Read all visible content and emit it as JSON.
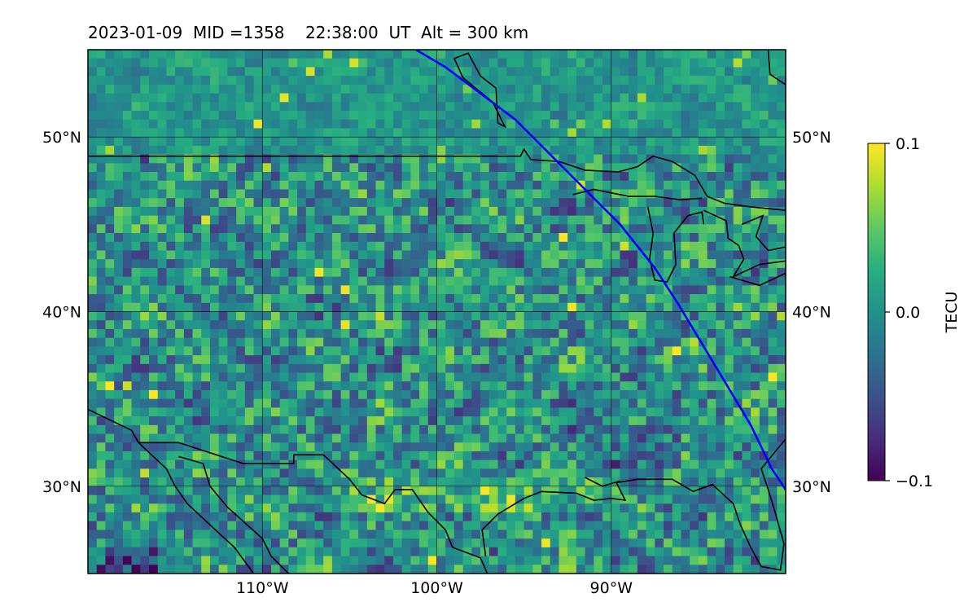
{
  "title": "2023-01-09  MID =1358    22:38:00  UT  Alt = 300 km",
  "chart_data": {
    "type": "heatmap",
    "title": "2023-01-09  MID =1358    22:38:00  UT  Alt = 300 km",
    "xlabel": "",
    "ylabel": "",
    "lon_range": [
      -120,
      -80
    ],
    "lat_range": [
      25,
      55
    ],
    "x_ticks": [
      {
        "value": -110,
        "label": "110°W"
      },
      {
        "value": -100,
        "label": "100°W"
      },
      {
        "value": -90,
        "label": "90°W"
      }
    ],
    "y_ticks": [
      {
        "value": 50,
        "label": "50°N"
      },
      {
        "value": 40,
        "label": "40°N"
      },
      {
        "value": 30,
        "label": "30°N"
      }
    ],
    "grid": true,
    "colormap": "viridis",
    "colorbar": {
      "label": "TECU",
      "range": [
        -0.1,
        0.1
      ],
      "ticks": [
        {
          "value": 0.1,
          "label": "0.1"
        },
        {
          "value": 0.0,
          "label": "0.0"
        },
        {
          "value": -0.1,
          "label": "−0.1"
        }
      ],
      "placement": "right"
    },
    "terminator_line": {
      "color": "#0000ff",
      "points": [
        [
          -101.2,
          55
        ],
        [
          -99.5,
          54
        ],
        [
          -97.5,
          52.5
        ],
        [
          -95.5,
          51
        ],
        [
          -93.5,
          49
        ],
        [
          -91.5,
          47
        ],
        [
          -89.5,
          45
        ],
        [
          -87.5,
          42.5
        ],
        [
          -86.2,
          40.5
        ],
        [
          -85,
          38.5
        ],
        [
          -83.5,
          36
        ],
        [
          -82,
          33.5
        ],
        [
          -80.8,
          31
        ],
        [
          -80,
          29.8
        ]
      ]
    },
    "grid_resolution_deg": 0.5
  }
}
